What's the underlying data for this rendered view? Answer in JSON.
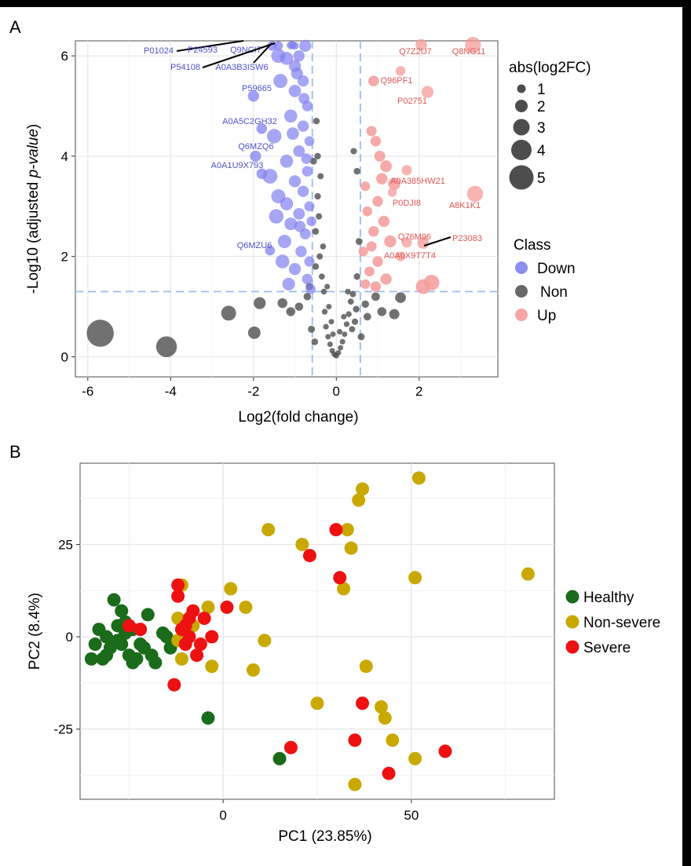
{
  "colors": {
    "down": "#8080f0",
    "non": "#4d4d4d",
    "up": "#f59a9a",
    "down_label": "#5050cc",
    "up_label": "#e35555",
    "healthy": "#1a6b1a",
    "non_severe": "#c9a800",
    "severe": "#ee1111",
    "threshold_line": "#9bbcec",
    "panel_bg": "#ffffff",
    "grid": "#e6e6e6"
  },
  "chart_data": [
    {
      "panel_letter": "A",
      "type": "scatter",
      "subtype": "volcano",
      "xlabel": "Log2(fold change)",
      "ylabel_prefix": "-Log10 (adjusted ",
      "ylabel_italic": "p-value",
      "ylabel_suffix": ")",
      "xlim": [
        -6.3,
        3.9
      ],
      "ylim": [
        -0.4,
        6.3
      ],
      "xticks": [
        -6,
        -4,
        -2,
        0,
        2
      ],
      "yticks": [
        0,
        2,
        4,
        6
      ],
      "thresholds": {
        "log2fc": [
          -0.58,
          0.58
        ],
        "neg_log10_p": 1.3
      },
      "size_legend": {
        "title": "abs(log2FC)",
        "values": [
          1,
          2,
          3,
          4,
          5
        ]
      },
      "class_legend": {
        "title": "Class",
        "items": [
          "Down",
          "Non",
          "Up"
        ]
      },
      "legend_position": "right",
      "labeled_points": [
        {
          "label": "P01024",
          "class": "Down",
          "x": -1.05,
          "y": 6.22
        },
        {
          "label": "P24593",
          "class": "Down",
          "x": -1.0,
          "y": 6.2
        },
        {
          "label": "Q9NCI7",
          "class": "Down",
          "x": -1.4,
          "y": 6.2
        },
        {
          "label": "P54108",
          "class": "Down",
          "x": -1.1,
          "y": 6.21
        },
        {
          "label": "A0A3B3ISW6",
          "class": "Down",
          "x": -1.55,
          "y": 6.2
        },
        {
          "label": "P59665",
          "class": "Down",
          "x": -2.0,
          "y": 5.2
        },
        {
          "label": "A0A5C2GH32",
          "class": "Down",
          "x": -1.8,
          "y": 4.55
        },
        {
          "label": "Q6MZQ6",
          "class": "Down",
          "x": -1.95,
          "y": 4.0
        },
        {
          "label": "A0A1U9X793",
          "class": "Down",
          "x": -1.8,
          "y": 3.65
        },
        {
          "label": "Q6MZU6",
          "class": "Down",
          "x": -1.6,
          "y": 2.12
        },
        {
          "label": "Q7Z2U7",
          "class": "Up",
          "x": 2.05,
          "y": 6.22
        },
        {
          "label": "Q8NG11",
          "class": "Up",
          "x": 3.3,
          "y": 6.22
        },
        {
          "label": "Q96PF1",
          "class": "Up",
          "x": 1.55,
          "y": 5.7
        },
        {
          "label": "P02751",
          "class": "Up",
          "x": 2.2,
          "y": 5.28
        },
        {
          "label": "A0A385HW21",
          "class": "Up",
          "x": 1.7,
          "y": 3.72
        },
        {
          "label": "P0DJI8",
          "class": "Up",
          "x": 1.35,
          "y": 3.28
        },
        {
          "label": "A8K1K1",
          "class": "Up",
          "x": 3.35,
          "y": 3.25
        },
        {
          "label": "Q76M96",
          "class": "Up",
          "x": 1.7,
          "y": 2.28
        },
        {
          "label": "P23083",
          "class": "Up",
          "x": 2.1,
          "y": 2.27
        },
        {
          "label": "A0A0X9T7T4",
          "class": "Up",
          "x": 1.55,
          "y": 2.0
        }
      ],
      "non_points": [
        {
          "x": -5.7,
          "y": 0.47
        },
        {
          "x": -4.1,
          "y": 0.2
        },
        {
          "x": -2.6,
          "y": 0.87
        },
        {
          "x": -1.98,
          "y": 0.48
        },
        {
          "x": -1.85,
          "y": 1.07
        },
        {
          "x": -1.3,
          "y": 1.07
        },
        {
          "x": -1.1,
          "y": 0.9
        },
        {
          "x": -0.9,
          "y": 1.0
        },
        {
          "x": -0.7,
          "y": 1.2
        },
        {
          "x": -0.5,
          "y": 2.5
        },
        {
          "x": -0.45,
          "y": 3.2
        },
        {
          "x": -0.4,
          "y": 2.0
        },
        {
          "x": -0.35,
          "y": 1.6
        },
        {
          "x": -0.3,
          "y": 1.3
        },
        {
          "x": -0.28,
          "y": 0.9
        },
        {
          "x": -0.25,
          "y": 0.6
        },
        {
          "x": -0.2,
          "y": 0.4
        },
        {
          "x": -0.15,
          "y": 0.25
        },
        {
          "x": -0.1,
          "y": 0.12
        },
        {
          "x": -0.05,
          "y": 0.05
        },
        {
          "x": 0.0,
          "y": 0.02
        },
        {
          "x": 0.05,
          "y": 0.08
        },
        {
          "x": 0.1,
          "y": 0.18
        },
        {
          "x": 0.15,
          "y": 0.3
        },
        {
          "x": 0.2,
          "y": 0.45
        },
        {
          "x": 0.25,
          "y": 0.65
        },
        {
          "x": 0.3,
          "y": 0.85
        },
        {
          "x": 0.35,
          "y": 1.1
        },
        {
          "x": 0.4,
          "y": 1.25
        },
        {
          "x": 0.45,
          "y": 0.7
        },
        {
          "x": 0.5,
          "y": 1.6
        },
        {
          "x": 0.55,
          "y": 2.3
        },
        {
          "x": -0.5,
          "y": 1.8
        },
        {
          "x": -0.42,
          "y": 2.8
        },
        {
          "x": -0.38,
          "y": 3.6
        },
        {
          "x": -0.45,
          "y": 4.0
        },
        {
          "x": -0.48,
          "y": 4.7
        },
        {
          "x": -0.55,
          "y": 3.9
        },
        {
          "x": -0.32,
          "y": 2.2
        },
        {
          "x": -0.22,
          "y": 1.4
        },
        {
          "x": -0.18,
          "y": 1.0
        },
        {
          "x": -0.12,
          "y": 0.7
        },
        {
          "x": -0.08,
          "y": 0.45
        },
        {
          "x": 0.08,
          "y": 0.5
        },
        {
          "x": 0.18,
          "y": 0.8
        },
        {
          "x": 0.28,
          "y": 1.3
        },
        {
          "x": 0.38,
          "y": 0.55
        },
        {
          "x": 0.48,
          "y": 0.95
        },
        {
          "x": 0.42,
          "y": 4.1
        },
        {
          "x": 0.5,
          "y": 3.7
        },
        {
          "x": 0.95,
          "y": 1.2
        },
        {
          "x": 1.1,
          "y": 0.9
        },
        {
          "x": 1.4,
          "y": 0.85
        },
        {
          "x": 1.55,
          "y": 1.18
        },
        {
          "x": 0.75,
          "y": 0.8
        },
        {
          "x": -0.6,
          "y": 0.55
        },
        {
          "x": -0.65,
          "y": 1.4
        },
        {
          "x": -0.52,
          "y": 0.3
        },
        {
          "x": 0.6,
          "y": 0.4
        },
        {
          "x": 0.7,
          "y": 1.05
        }
      ],
      "down_points": [
        {
          "x": -0.75,
          "y": 6.2,
          "s": 2.2
        },
        {
          "x": -0.9,
          "y": 6.0,
          "s": 2.0
        },
        {
          "x": -1.0,
          "y": 5.8,
          "s": 2.2
        },
        {
          "x": -0.8,
          "y": 5.5,
          "s": 2.0
        },
        {
          "x": -1.2,
          "y": 5.95,
          "s": 2.5
        },
        {
          "x": -1.0,
          "y": 5.3,
          "s": 2.3
        },
        {
          "x": -0.7,
          "y": 5.0,
          "s": 1.8
        },
        {
          "x": -1.1,
          "y": 4.8,
          "s": 2.5
        },
        {
          "x": -0.8,
          "y": 4.6,
          "s": 2.0
        },
        {
          "x": -0.65,
          "y": 4.3,
          "s": 1.6
        },
        {
          "x": -0.9,
          "y": 4.1,
          "s": 2.1
        },
        {
          "x": -1.2,
          "y": 3.9,
          "s": 2.5
        },
        {
          "x": -0.7,
          "y": 3.7,
          "s": 1.8
        },
        {
          "x": -1.0,
          "y": 3.5,
          "s": 2.2
        },
        {
          "x": -0.8,
          "y": 3.3,
          "s": 2.0
        },
        {
          "x": -1.4,
          "y": 3.2,
          "s": 2.8
        },
        {
          "x": -0.65,
          "y": 3.0,
          "s": 1.7
        },
        {
          "x": -0.9,
          "y": 2.85,
          "s": 2.1
        },
        {
          "x": -1.1,
          "y": 2.65,
          "s": 2.4
        },
        {
          "x": -0.75,
          "y": 2.45,
          "s": 1.9
        },
        {
          "x": -1.25,
          "y": 2.3,
          "s": 2.6
        },
        {
          "x": -0.85,
          "y": 2.1,
          "s": 2.0
        },
        {
          "x": -0.65,
          "y": 1.9,
          "s": 1.7
        },
        {
          "x": -1.0,
          "y": 1.75,
          "s": 2.2
        },
        {
          "x": -0.7,
          "y": 1.55,
          "s": 1.8
        },
        {
          "x": -1.15,
          "y": 1.45,
          "s": 2.4
        },
        {
          "x": -0.62,
          "y": 1.35,
          "s": 1.6
        },
        {
          "x": -1.5,
          "y": 4.4,
          "s": 2.9
        },
        {
          "x": -1.6,
          "y": 3.6,
          "s": 3.0
        },
        {
          "x": -1.35,
          "y": 5.5,
          "s": 2.8
        },
        {
          "x": -1.45,
          "y": 2.8,
          "s": 2.9
        },
        {
          "x": -1.3,
          "y": 1.9,
          "s": 2.7
        },
        {
          "x": -0.95,
          "y": 5.65,
          "s": 2.2
        },
        {
          "x": -0.72,
          "y": 3.95,
          "s": 1.8
        },
        {
          "x": -1.05,
          "y": 4.45,
          "s": 2.3
        },
        {
          "x": -0.88,
          "y": 2.6,
          "s": 2.0
        },
        {
          "x": -0.6,
          "y": 2.7,
          "s": 1.6
        },
        {
          "x": -1.2,
          "y": 3.05,
          "s": 2.5
        },
        {
          "x": -0.78,
          "y": 5.15,
          "s": 1.9
        },
        {
          "x": -1.4,
          "y": 6.0,
          "s": 2.8
        }
      ],
      "up_points": [
        {
          "x": 0.85,
          "y": 4.5,
          "s": 1.7
        },
        {
          "x": 0.95,
          "y": 4.3,
          "s": 1.8
        },
        {
          "x": 1.2,
          "y": 3.8,
          "s": 2.1
        },
        {
          "x": 1.05,
          "y": 4.0,
          "s": 1.9
        },
        {
          "x": 0.7,
          "y": 3.4,
          "s": 1.5
        },
        {
          "x": 1.0,
          "y": 3.1,
          "s": 1.8
        },
        {
          "x": 0.75,
          "y": 2.9,
          "s": 1.6
        },
        {
          "x": 1.15,
          "y": 2.7,
          "s": 2.0
        },
        {
          "x": 0.9,
          "y": 2.5,
          "s": 1.8
        },
        {
          "x": 1.3,
          "y": 2.3,
          "s": 2.2
        },
        {
          "x": 0.65,
          "y": 2.1,
          "s": 1.5
        },
        {
          "x": 1.0,
          "y": 1.9,
          "s": 1.8
        },
        {
          "x": 0.8,
          "y": 1.7,
          "s": 1.6
        },
        {
          "x": 1.2,
          "y": 1.55,
          "s": 2.0
        },
        {
          "x": 0.7,
          "y": 1.45,
          "s": 1.5
        },
        {
          "x": 0.95,
          "y": 1.4,
          "s": 1.8
        },
        {
          "x": 2.1,
          "y": 1.4,
          "s": 3.0
        },
        {
          "x": 2.3,
          "y": 1.48,
          "s": 3.2
        },
        {
          "x": 0.9,
          "y": 5.5,
          "s": 1.8
        },
        {
          "x": 1.4,
          "y": 3.45,
          "s": 2.3
        },
        {
          "x": 1.1,
          "y": 3.55,
          "s": 2.0
        },
        {
          "x": 0.85,
          "y": 2.2,
          "s": 1.7
        }
      ]
    },
    {
      "panel_letter": "B",
      "type": "scatter",
      "subtype": "pca",
      "xlabel": "PC1 (23.85%)",
      "ylabel": "PC2 (8.4%)",
      "xlim": [
        -38,
        88
      ],
      "ylim": [
        -44,
        47
      ],
      "xticks": [
        0,
        50
      ],
      "yticks": [
        -25,
        0,
        25
      ],
      "legend_position": "right",
      "series": [
        {
          "name": "Healthy",
          "points": [
            [
              -35,
              -6
            ],
            [
              -34,
              -2
            ],
            [
              -33,
              2
            ],
            [
              -32,
              -6
            ],
            [
              -31,
              0
            ],
            [
              -30,
              -3
            ],
            [
              -29,
              10
            ],
            [
              -28,
              3
            ],
            [
              -28,
              -1
            ],
            [
              -27,
              7
            ],
            [
              -26,
              4
            ],
            [
              -26,
              1
            ],
            [
              -25,
              -5
            ],
            [
              -24,
              2
            ],
            [
              -24,
              -7
            ],
            [
              -23,
              -6
            ],
            [
              -22,
              -2
            ],
            [
              -21,
              -3
            ],
            [
              -20,
              6
            ],
            [
              -19,
              -5
            ],
            [
              -18,
              -7
            ],
            [
              -16,
              1
            ],
            [
              -14,
              -3
            ],
            [
              -15,
              0
            ],
            [
              -4,
              -22
            ],
            [
              15,
              -33
            ],
            [
              -31,
              -5
            ],
            [
              -27,
              -2
            ]
          ]
        },
        {
          "name": "Non-severe",
          "points": [
            [
              -11,
              14
            ],
            [
              -12,
              5
            ],
            [
              -10,
              0
            ],
            [
              -8,
              3
            ],
            [
              -11,
              -6
            ],
            [
              -4,
              8
            ],
            [
              -3,
              -8
            ],
            [
              2,
              13
            ],
            [
              6,
              8
            ],
            [
              8,
              -9
            ],
            [
              11,
              -1
            ],
            [
              12,
              29
            ],
            [
              21,
              25
            ],
            [
              25,
              -18
            ],
            [
              32,
              13
            ],
            [
              33,
              29
            ],
            [
              34,
              24
            ],
            [
              36,
              37
            ],
            [
              37,
              40
            ],
            [
              38,
              -8
            ],
            [
              42,
              -19
            ],
            [
              43,
              -22
            ],
            [
              45,
              -28
            ],
            [
              51,
              16
            ],
            [
              51,
              -33
            ],
            [
              52,
              43
            ],
            [
              81,
              17
            ],
            [
              35,
              -40
            ],
            [
              -12,
              -1
            ]
          ]
        },
        {
          "name": "Severe",
          "points": [
            [
              -25,
              3
            ],
            [
              -22,
              2
            ],
            [
              -13,
              -13
            ],
            [
              -12,
              14
            ],
            [
              -12,
              11
            ],
            [
              -11,
              2
            ],
            [
              -10,
              -2
            ],
            [
              -9,
              5
            ],
            [
              -8,
              7
            ],
            [
              -7,
              -5
            ],
            [
              -6,
              -2
            ],
            [
              -5,
              5
            ],
            [
              -3,
              0
            ],
            [
              1,
              8
            ],
            [
              18,
              -30
            ],
            [
              23,
              22
            ],
            [
              30,
              29
            ],
            [
              31,
              16
            ],
            [
              35,
              -28
            ],
            [
              37,
              -18
            ],
            [
              44,
              -37
            ],
            [
              59,
              -31
            ],
            [
              -9,
              0
            ],
            [
              -10,
              3
            ]
          ]
        }
      ]
    }
  ]
}
